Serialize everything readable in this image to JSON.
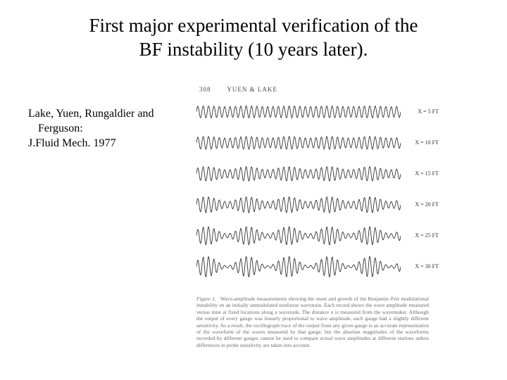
{
  "title": {
    "line1": "First major experimental verification of the",
    "line2": "BF instability (10 years later)."
  },
  "citation": {
    "line1": "Lake, Yuen, Rungaldier and",
    "line2": "Ferguson:",
    "line3": "J.Fluid Mech. 1977"
  },
  "figure": {
    "page_number": "308",
    "running_head": "YUEN & LAKE",
    "stroke_color": "#333333",
    "bg_color": "#ffffff",
    "trace_width": 290,
    "trace_height": 34,
    "cycles": 38,
    "carrier_amp": 8,
    "traces": [
      {
        "label": "X = 5 FT",
        "mod_depth": 0.06,
        "mod_cycles": 5
      },
      {
        "label": "X = 10 FT",
        "mod_depth": 0.14,
        "mod_cycles": 5
      },
      {
        "label": "X = 15 FT",
        "mod_depth": 0.28,
        "mod_cycles": 5
      },
      {
        "label": "X = 20 FT",
        "mod_depth": 0.42,
        "mod_cycles": 5
      },
      {
        "label": "X = 25 FT",
        "mod_depth": 0.62,
        "mod_cycles": 5
      },
      {
        "label": "X = 30 FT",
        "mod_depth": 0.82,
        "mod_cycles": 5
      }
    ],
    "caption_label": "Figure 1.",
    "caption_text": "Wave-amplitude measurements showing the onset and growth of the Benjamin–Feir modulational instability on an initially unmodulated nonlinear wavetrain. Each record shows the wave amplitude measured versus time at fixed locations along a wavetank. The distance x is measured from the wavemaker. Although the output of every gauge was linearly proportional to wave amplitude, each gauge had a slightly different sensitivity. As a result, the oscillograph trace of the output from any given gauge is an accurate representation of the waveform of the waves measured by that gauge, but the absolute magnitudes of the waveforms recorded by different gauges cannot be used to compare actual wave amplitudes at different stations unless differences in probe sensitivity are taken into account."
  }
}
